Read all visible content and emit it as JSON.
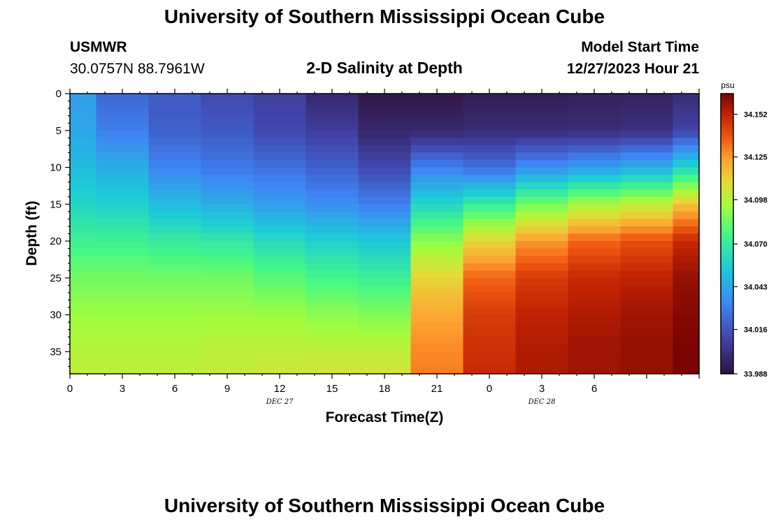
{
  "page": {
    "title": "University of Southern Mississippi Ocean Cube",
    "title_repeat": "University of Southern Mississippi Ocean Cube",
    "station": "USMWR",
    "coordinates": "30.0757N  88.7961W",
    "model_start_label": "Model Start Time",
    "model_start_value": "12/27/2023 Hour 21"
  },
  "chart_data": {
    "type": "heatmap",
    "title": "2-D Salinity at Depth",
    "xlabel": "Forecast Time(Z)",
    "ylabel": "Depth (ft)",
    "x_range": [
      0,
      36
    ],
    "y_range": [
      0,
      38
    ],
    "x_tick_values": [
      0,
      3,
      6,
      9,
      12,
      15,
      18,
      21,
      24,
      27,
      30,
      33,
      36
    ],
    "x_tick_labels": [
      "0",
      "3",
      "6",
      "9",
      "12",
      "15",
      "18",
      "21",
      "0",
      "3",
      "6"
    ],
    "x_minor_ticks": [
      0,
      3,
      6,
      9,
      12,
      15,
      18,
      21,
      24,
      27,
      30,
      33,
      36
    ],
    "x_labeled_ticks": [
      0,
      3,
      6,
      9,
      12,
      15,
      18,
      21,
      24,
      27,
      30
    ],
    "date_labels": [
      {
        "text": "DEC 27",
        "x": 12
      },
      {
        "text": "DEC 28",
        "x": 27
      }
    ],
    "y_tick_values": [
      0,
      5,
      10,
      15,
      20,
      25,
      30,
      35
    ],
    "y_tick_labels": [
      "0",
      "5",
      "10",
      "15",
      "20",
      "25",
      "30",
      "35"
    ],
    "colorbar": {
      "unit": "psu",
      "min": 33.988,
      "max": 34.165,
      "tick_values": [
        34.152,
        34.125,
        34.098,
        34.07,
        34.043,
        34.016,
        33.988
      ],
      "tick_labels": [
        "34.152",
        "34.125",
        "34.098",
        "34.070",
        "34.043",
        "34.016",
        "33.988"
      ]
    },
    "column_times": [
      0,
      3,
      6,
      9,
      12,
      15,
      18,
      21,
      24,
      27,
      30,
      33,
      36
    ],
    "depth_levels": [
      0,
      5,
      10,
      15,
      20,
      25,
      30,
      35,
      38
    ],
    "profiles": [
      [
        34.04,
        34.043,
        34.05,
        34.06,
        34.073,
        34.085,
        34.093,
        34.098,
        34.1
      ],
      [
        34.022,
        34.03,
        34.045,
        34.058,
        34.073,
        34.085,
        34.093,
        34.098,
        34.1
      ],
      [
        34.018,
        34.02,
        34.032,
        34.05,
        34.07,
        34.085,
        34.093,
        34.098,
        34.1
      ],
      [
        34.012,
        34.018,
        34.028,
        34.045,
        34.068,
        34.085,
        34.093,
        34.1,
        34.102
      ],
      [
        34.008,
        34.012,
        34.025,
        34.04,
        34.062,
        34.08,
        34.093,
        34.1,
        34.103
      ],
      [
        33.998,
        34.008,
        34.02,
        34.035,
        34.058,
        34.075,
        34.09,
        34.1,
        34.105
      ],
      [
        33.99,
        33.998,
        34.012,
        34.03,
        34.055,
        34.072,
        34.088,
        34.1,
        34.105
      ],
      [
        33.99,
        33.998,
        34.03,
        34.06,
        34.09,
        34.11,
        34.122,
        34.128,
        34.13
      ],
      [
        33.993,
        34.0,
        34.025,
        34.07,
        34.11,
        34.135,
        34.145,
        34.148,
        34.15
      ],
      [
        33.993,
        34.0,
        34.035,
        34.085,
        34.125,
        34.145,
        34.152,
        34.155,
        34.155
      ],
      [
        33.995,
        34.0,
        34.04,
        34.095,
        34.135,
        34.15,
        34.155,
        34.158,
        34.158
      ],
      [
        33.995,
        34.002,
        34.045,
        34.1,
        34.14,
        34.152,
        34.158,
        34.16,
        34.16
      ],
      [
        34.0,
        34.01,
        34.06,
        34.115,
        34.15,
        34.16,
        34.163,
        34.165,
        34.165
      ]
    ]
  }
}
